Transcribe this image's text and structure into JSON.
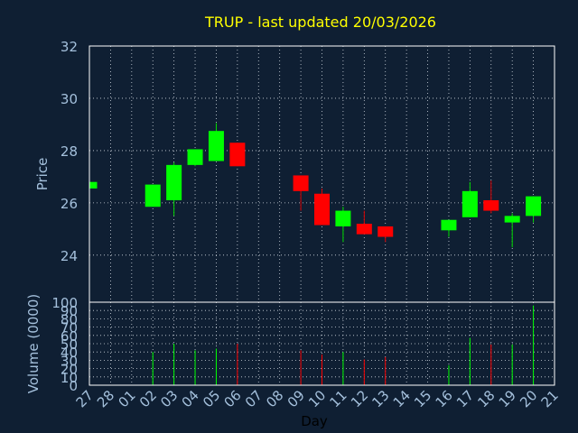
{
  "chart_data": [
    {
      "type": "candlestick",
      "title": "TRUP - last updated 20/03/2026",
      "ylabel": "Price",
      "ylim": [
        22.2,
        32
      ],
      "yticks": [
        24,
        26,
        28,
        30,
        32
      ],
      "grid": true,
      "categories": [
        "27",
        "28",
        "01",
        "02",
        "03",
        "04",
        "05",
        "06",
        "07",
        "08",
        "09",
        "10",
        "11",
        "12",
        "13",
        "14",
        "15",
        "16",
        "17",
        "18",
        "19",
        "20",
        "21"
      ],
      "candles": [
        {
          "day": "27",
          "open": 26.55,
          "high": 26.8,
          "low": 26.55,
          "close": 26.8
        },
        {
          "day": "02",
          "open": 25.85,
          "high": 26.7,
          "low": 25.85,
          "close": 26.7
        },
        {
          "day": "03",
          "open": 26.1,
          "high": 27.55,
          "low": 25.5,
          "close": 27.45
        },
        {
          "day": "04",
          "open": 27.45,
          "high": 28.05,
          "low": 27.4,
          "close": 28.05
        },
        {
          "day": "05",
          "open": 27.6,
          "high": 29.05,
          "low": 27.6,
          "close": 28.75
        },
        {
          "day": "06",
          "open": 28.3,
          "high": 28.3,
          "low": 27.4,
          "close": 27.4
        },
        {
          "day": "09",
          "open": 27.05,
          "high": 27.05,
          "low": 25.7,
          "close": 26.45
        },
        {
          "day": "10",
          "open": 26.35,
          "high": 26.55,
          "low": 25.15,
          "close": 25.15
        },
        {
          "day": "11",
          "open": 25.1,
          "high": 25.85,
          "low": 24.5,
          "close": 25.7
        },
        {
          "day": "12",
          "open": 25.2,
          "high": 25.7,
          "low": 24.8,
          "close": 24.8
        },
        {
          "day": "13",
          "open": 25.1,
          "high": 25.1,
          "low": 24.5,
          "close": 24.7
        },
        {
          "day": "16",
          "open": 24.95,
          "high": 25.35,
          "low": 24.7,
          "close": 25.35
        },
        {
          "day": "17",
          "open": 25.45,
          "high": 26.8,
          "low": 25.45,
          "close": 26.45
        },
        {
          "day": "18",
          "open": 26.1,
          "high": 26.85,
          "low": 25.6,
          "close": 25.7
        },
        {
          "day": "19",
          "open": 25.25,
          "high": 25.6,
          "low": 24.3,
          "close": 25.5
        },
        {
          "day": "20",
          "open": 25.5,
          "high": 26.25,
          "low": 25.25,
          "close": 26.25
        }
      ]
    },
    {
      "type": "bar",
      "ylabel": "Volume (0000)",
      "xlabel": "Day",
      "ylim": [
        0,
        100
      ],
      "yticks": [
        0,
        10,
        20,
        30,
        40,
        50,
        60,
        70,
        80,
        90,
        100
      ],
      "yticklabels": [
        "0",
        "10",
        "20",
        "30",
        "40",
        "50",
        "60",
        "70",
        "80",
        "90",
        "100"
      ],
      "categories": [
        "27",
        "28",
        "01",
        "02",
        "03",
        "04",
        "05",
        "06",
        "07",
        "08",
        "09",
        "10",
        "11",
        "12",
        "13",
        "14",
        "15",
        "16",
        "17",
        "18",
        "19",
        "20",
        "21"
      ],
      "bars": [
        {
          "day": "02",
          "value": 40,
          "direction": "up"
        },
        {
          "day": "03",
          "value": 50,
          "direction": "up"
        },
        {
          "day": "04",
          "value": 42,
          "direction": "up"
        },
        {
          "day": "05",
          "value": 44,
          "direction": "up"
        },
        {
          "day": "06",
          "value": 50,
          "direction": "down"
        },
        {
          "day": "09",
          "value": 42,
          "direction": "down"
        },
        {
          "day": "10",
          "value": 37,
          "direction": "down"
        },
        {
          "day": "11",
          "value": 40,
          "direction": "up"
        },
        {
          "day": "12",
          "value": 31,
          "direction": "down"
        },
        {
          "day": "13",
          "value": 34,
          "direction": "down"
        },
        {
          "day": "16",
          "value": 24,
          "direction": "up"
        },
        {
          "day": "17",
          "value": 57,
          "direction": "up"
        },
        {
          "day": "18",
          "value": 49,
          "direction": "down"
        },
        {
          "day": "19",
          "value": 49,
          "direction": "up"
        },
        {
          "day": "20",
          "value": 96,
          "direction": "up"
        }
      ]
    }
  ],
  "colors": {
    "background": "#0f1f33",
    "text": "#a4c0dc",
    "title": "#ffff00",
    "grid": "#cfd6de",
    "up": "#00ff00",
    "down": "#ff0000",
    "wick_up": "#00dd00",
    "wick_down": "#dd0000"
  }
}
